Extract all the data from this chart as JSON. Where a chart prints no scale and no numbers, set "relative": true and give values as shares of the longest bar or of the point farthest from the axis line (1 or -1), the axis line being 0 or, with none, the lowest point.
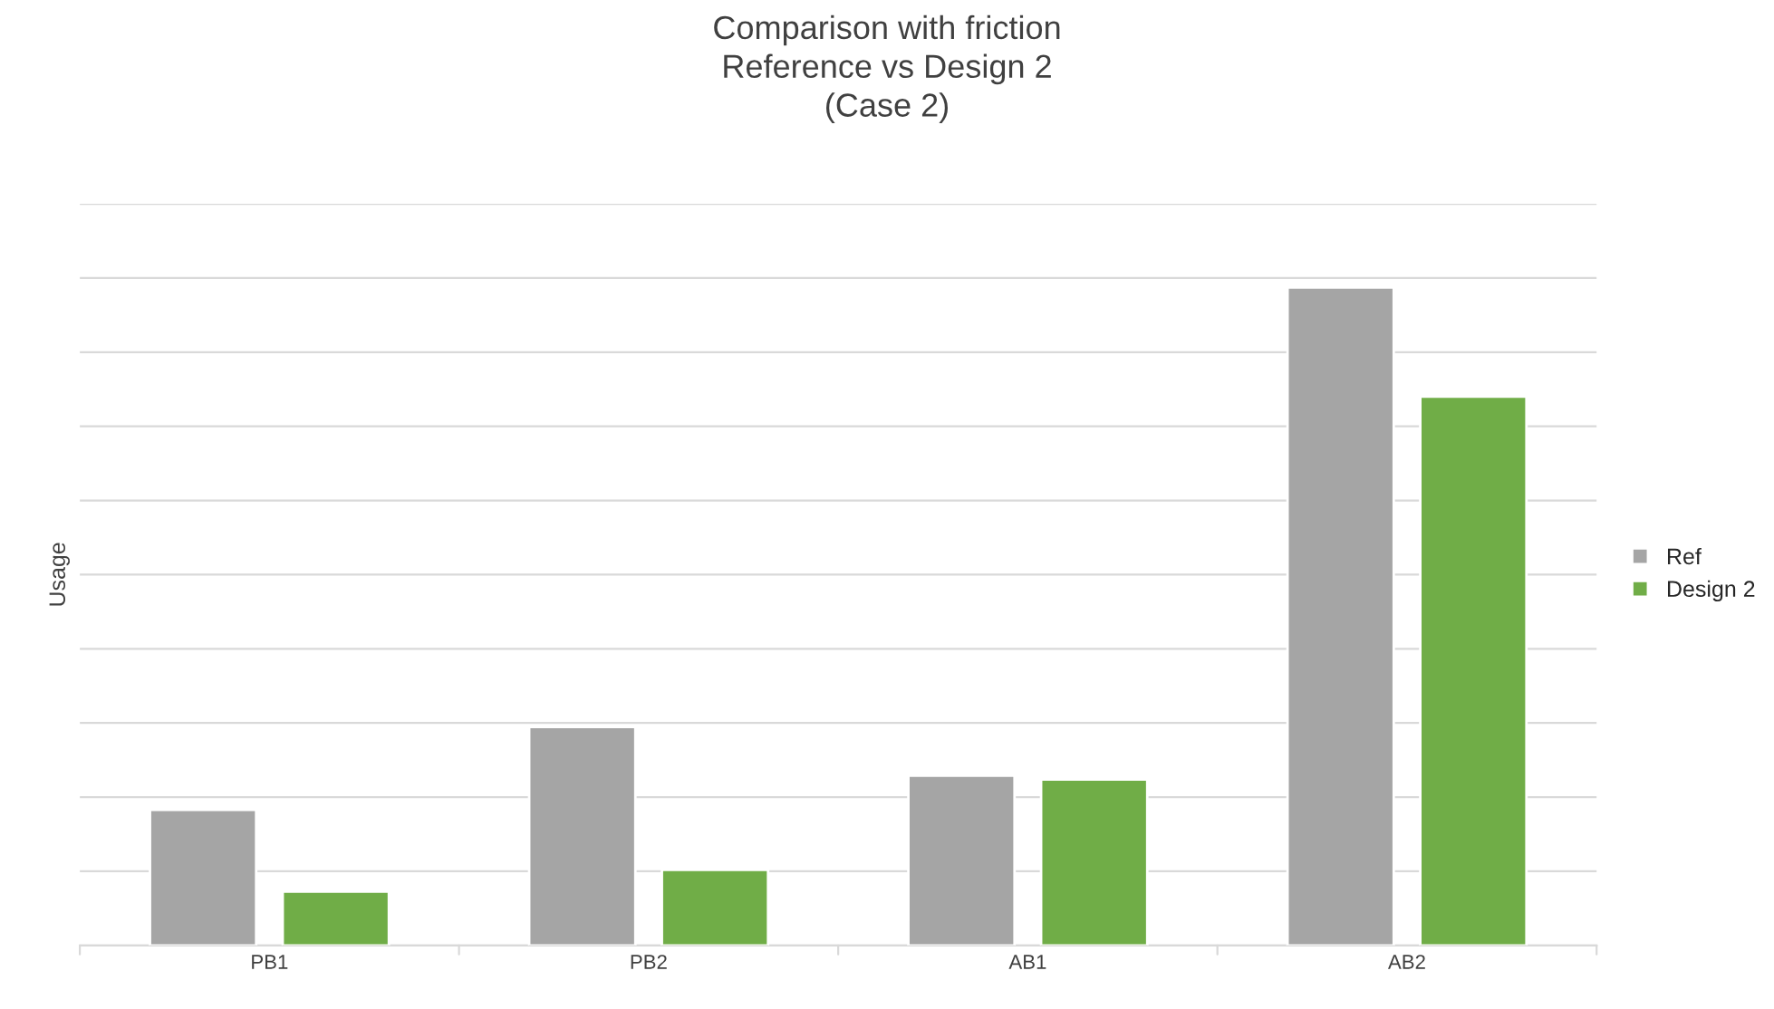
{
  "chart_data": {
    "type": "bar",
    "title": "Comparison with friction\nReference vs Design 2\n(Case 2)",
    "ylabel": "Usage",
    "categories": [
      "PB1",
      "PB2",
      "AB1",
      "AB2"
    ],
    "series": [
      {
        "name": "Ref",
        "color": "#a5a5a5",
        "values": [
          0.206,
          0.332,
          0.258,
          1
        ]
      },
      {
        "name": "Design 2",
        "color": "#70ad47",
        "values": [
          0.082,
          0.115,
          0.252,
          0.834
        ]
      }
    ],
    "relative": true,
    "grid": "y",
    "legend": "right"
  }
}
